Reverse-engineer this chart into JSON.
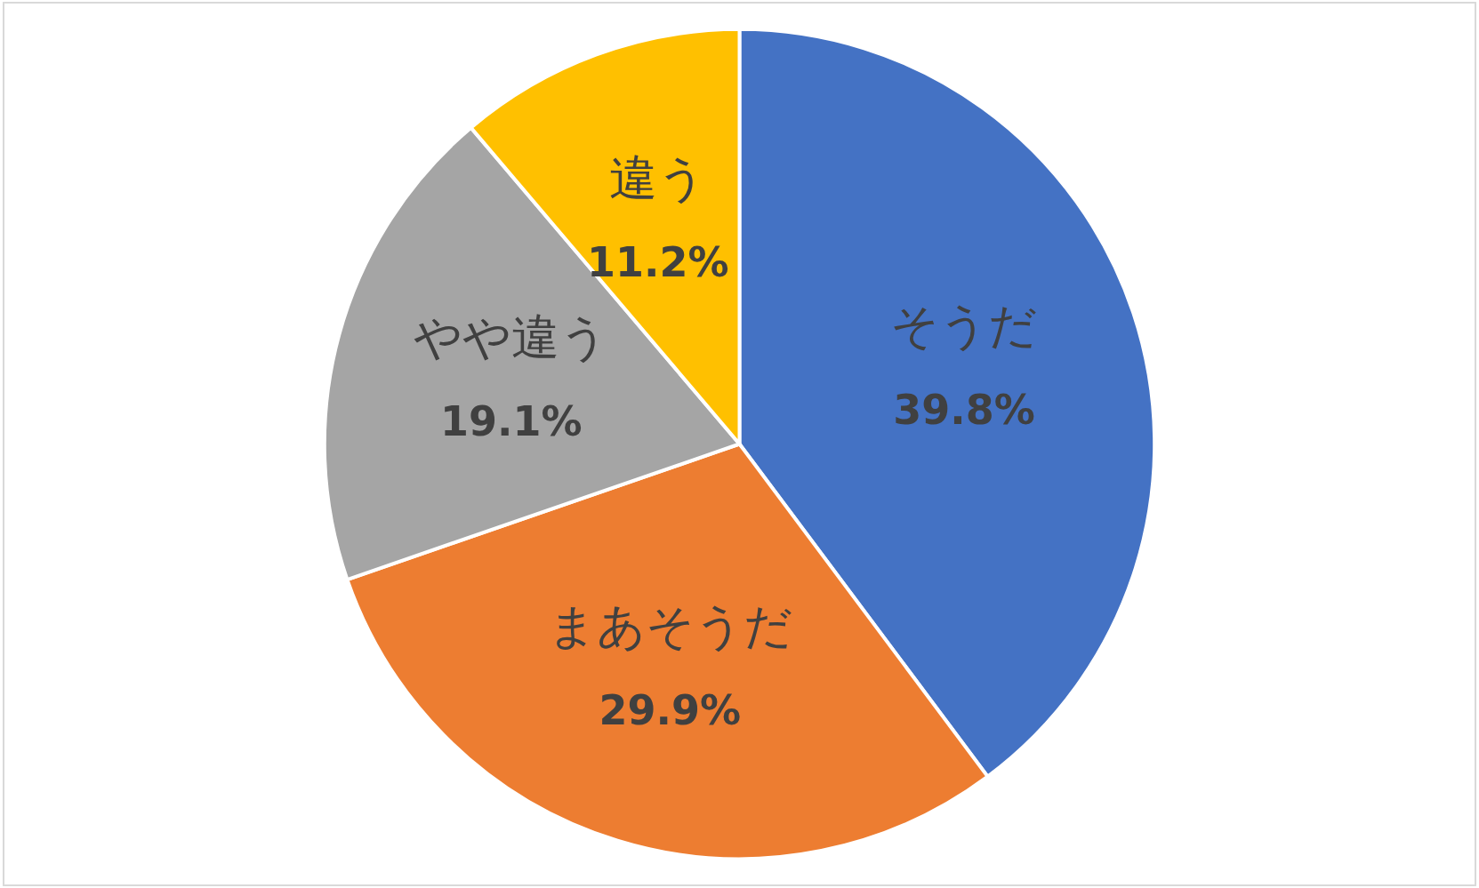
{
  "chart_data": {
    "type": "pie",
    "categories": [
      "そうだ",
      "まあそうだ",
      "やや違う",
      "違う"
    ],
    "values": [
      39.8,
      29.9,
      19.1,
      11.2
    ],
    "colors": [
      "#4472c4",
      "#ed7d31",
      "#a5a5a5",
      "#ffc000"
    ],
    "value_labels": [
      "39.8%",
      "29.9%",
      "19.1%",
      "11.2%"
    ]
  }
}
